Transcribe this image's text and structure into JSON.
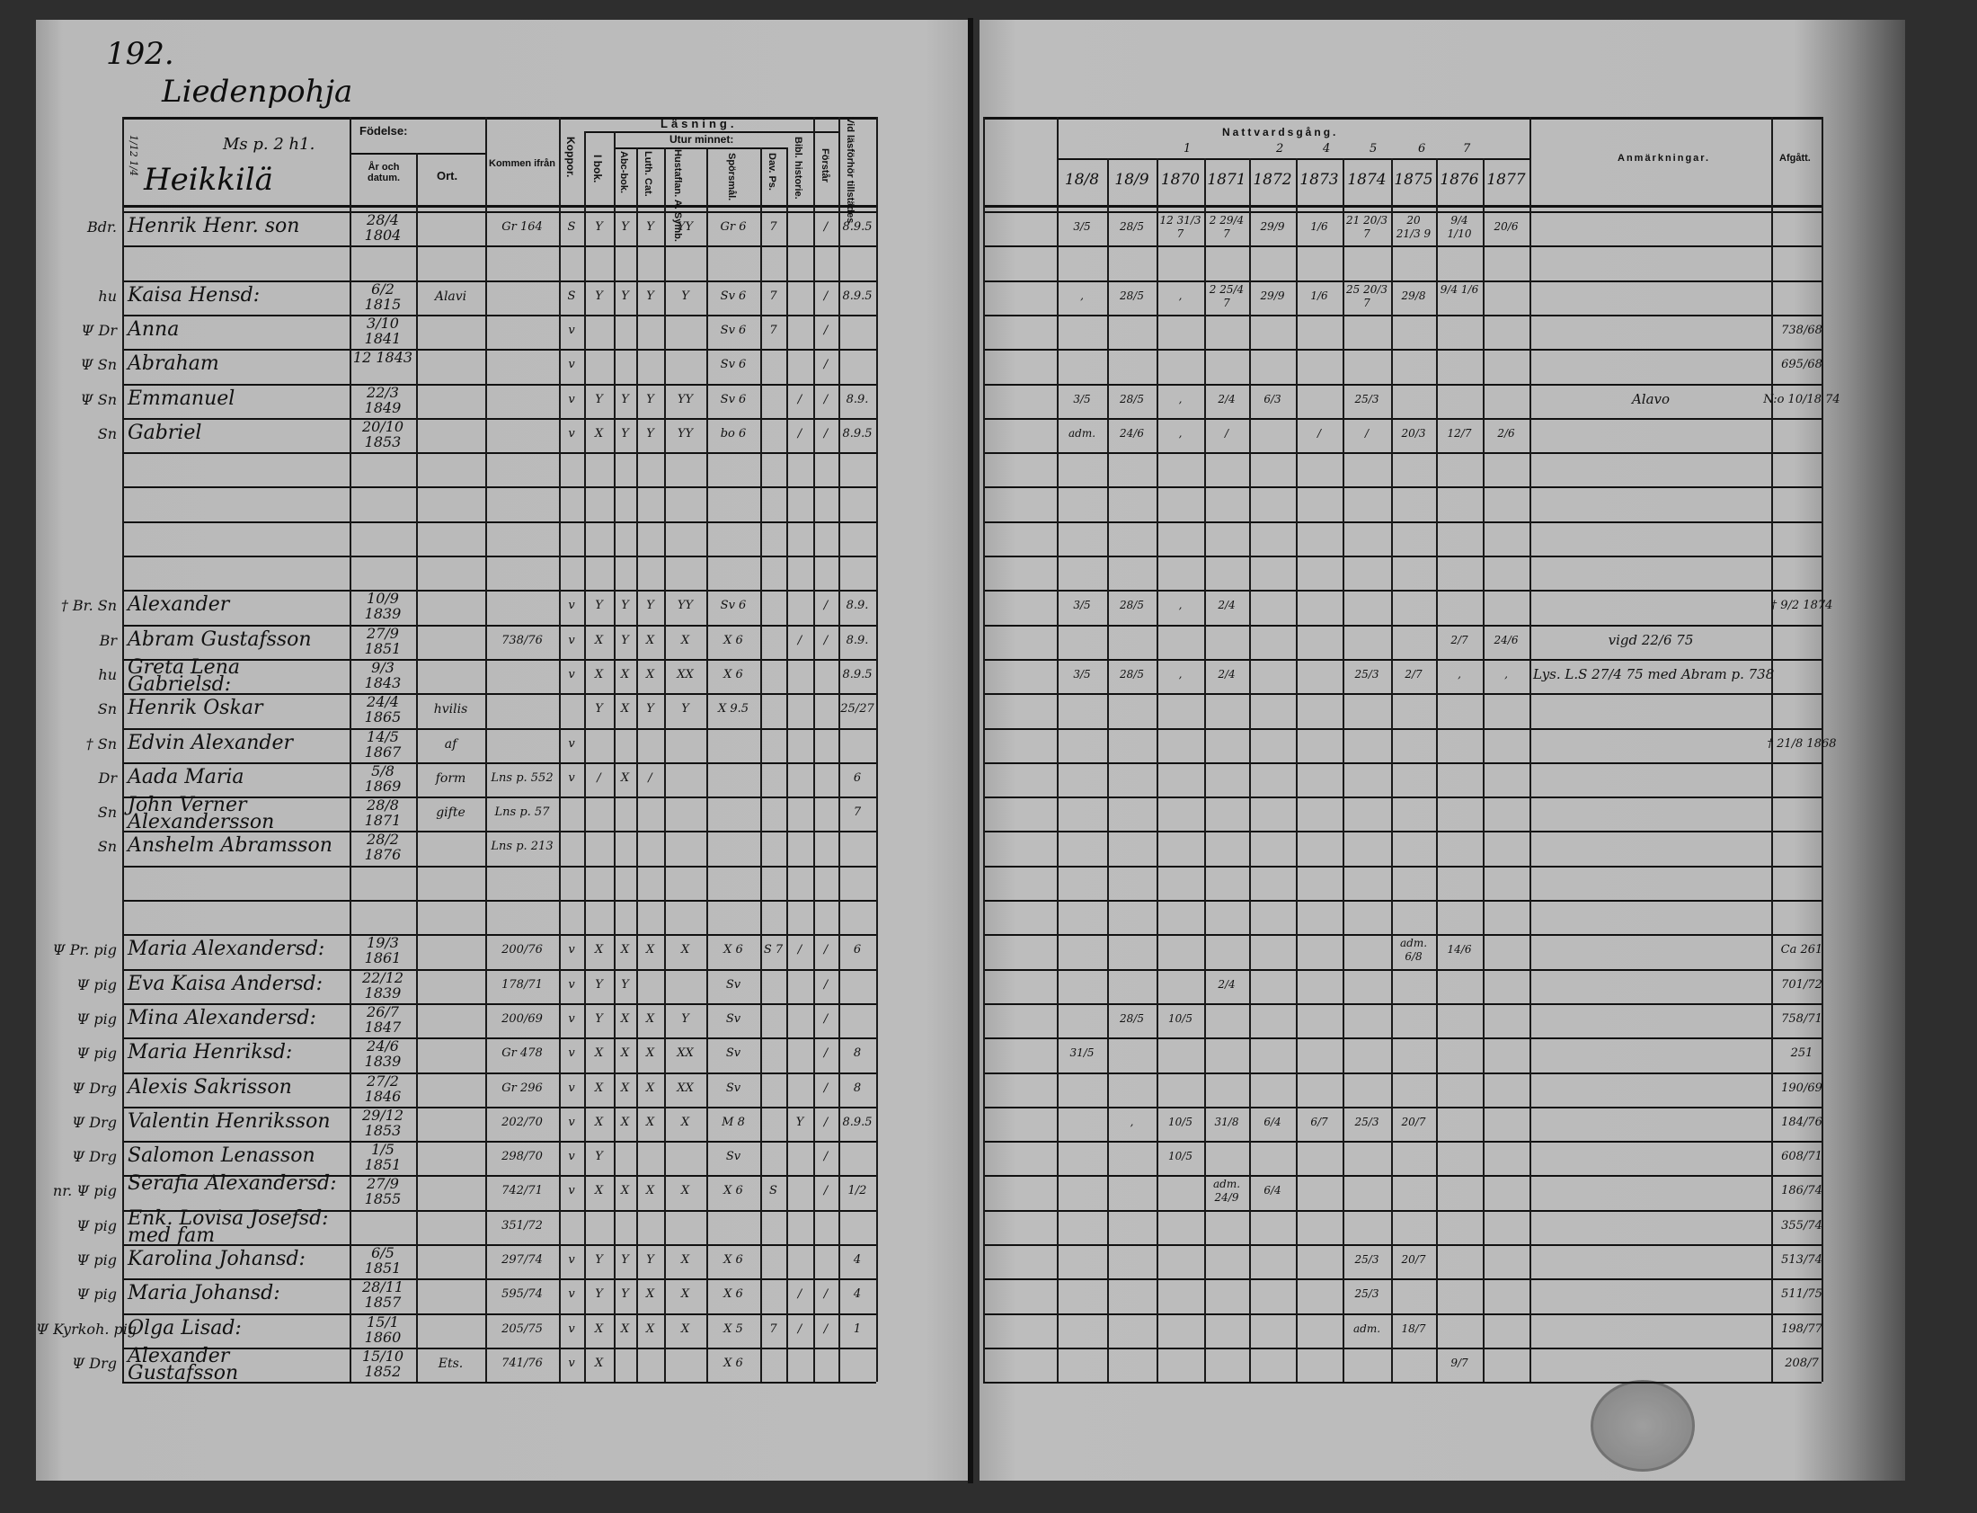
{
  "page_number": "192.",
  "village": "Liedenpohja",
  "farm": {
    "name": "Heikkilä",
    "reference": "Ms p. 2 h1.",
    "side_note": "1/12 1/4"
  },
  "header": {
    "birth": "Födelse:",
    "year_date": "År och datum.",
    "place": "Ort.",
    "came_from": "Kommen ifrån",
    "smallpox": "Koppor.",
    "reading": "Läsning.",
    "from_memory": "Utur minnet:",
    "in_book": "I bok.",
    "abc_book": "Abc-bok.",
    "luther_cat": "Luth. Cat.",
    "house_table": "Hustaflan. A. Symb.",
    "questions": "Spörsmål.",
    "psalms": "Dav. Ps.",
    "bible_history": "Bibl. historie.",
    "understands": "Förstår",
    "present_exam": "Vid läsförhör tillstädes",
    "communion": "Nattvardsgång.",
    "communion_numbers": [
      "1",
      "2",
      "4",
      "5",
      "6",
      "7"
    ],
    "years": [
      "18/8",
      "18/9",
      "1870",
      "1871",
      "1872",
      "1873",
      "1874",
      "1875",
      "1876",
      "1877"
    ],
    "remarks": "Anmärkningar.",
    "departed": "Afgått."
  },
  "rows": [
    {
      "mark": "Bdr.",
      "name": "Henrik Henr. son",
      "birth": "28/4 1804",
      "from": "Gr 164",
      "reading": [
        "S",
        "Y",
        "Y",
        "Y",
        "YY",
        "Gr 6",
        "7",
        "",
        "/",
        "8.9.5"
      ],
      "comm": [
        "3/5",
        "28/5",
        "12 31/3 7",
        "2 29/4 7",
        "29/9",
        "1/6",
        "21 20/3 7",
        "20 21/3 9",
        "9/4 1/10",
        "20/6"
      ]
    },
    {},
    {
      "mark": "hu",
      "name": "Kaisa Hensd:",
      "birth": "6/2 1815",
      "place": "Alavi",
      "reading": [
        "S",
        "Y",
        "Y",
        "Y",
        "Y",
        "Sv 6",
        "7",
        "",
        "/",
        "8.9.5"
      ],
      "comm": [
        ",",
        "28/5",
        ",",
        "2 25/4 7",
        "29/9",
        "1/6",
        "25 20/3 7",
        "29/8",
        "9/4 1/6",
        ""
      ]
    },
    {
      "mark": "Ψ Dr",
      "name": "Anna",
      "birth": "3/10 1841",
      "reading": [
        "v",
        "",
        "",
        "",
        "",
        "Sv 6",
        "7",
        "",
        "/",
        ""
      ],
      "afgatt": "738/68"
    },
    {
      "mark": "Ψ Sn",
      "name": "Abraham",
      "birth": "12 1843",
      "reading": [
        "v",
        "",
        "",
        "",
        "",
        "Sv 6",
        "",
        "",
        "/",
        ""
      ],
      "afgatt": "695/68"
    },
    {
      "mark": "Ψ Sn",
      "name": "Emmanuel",
      "birth": "22/3 1849",
      "reading": [
        "v",
        "Y",
        "Y",
        "Y",
        "YY",
        "Sv 6",
        "",
        "/",
        "/",
        "8.9."
      ],
      "comm": [
        "3/5",
        "28/5",
        ",",
        "2/4",
        "6/3",
        "",
        "25/3",
        "",
        "",
        ""
      ],
      "remark": "Alavo",
      "afgatt": "N:o 10/18 74"
    },
    {
      "mark": "Sn",
      "name": "Gabriel",
      "birth": "20/10 1853",
      "reading": [
        "v",
        "X",
        "Y",
        "Y",
        "YY",
        "bo 6",
        "",
        "/",
        "/",
        "8.9.5"
      ],
      "comm": [
        "adm.",
        "24/6",
        ",",
        "/",
        "",
        "/",
        "/",
        "20/3",
        "12/7",
        "2/6"
      ]
    },
    {},
    {},
    {},
    {},
    {
      "mark": "† Br. Sn",
      "name": "Alexander",
      "birth": "10/9 1839",
      "reading": [
        "v",
        "Y",
        "Y",
        "Y",
        "YY",
        "Sv 6",
        "",
        "",
        "/",
        "8.9."
      ],
      "comm": [
        "3/5",
        "28/5",
        ",",
        "2/4",
        "",
        "",
        "",
        "",
        "",
        ""
      ],
      "afgatt": "† 9/2 1874"
    },
    {
      "mark": "Br",
      "name": "Abram Gustafsson",
      "birth": "27/9 1851",
      "from": "738/76",
      "reading": [
        "v",
        "X",
        "Y",
        "X",
        "X",
        "X 6",
        "",
        "/",
        "/",
        "8.9."
      ],
      "comm": [
        "",
        "",
        "",
        "",
        "",
        "",
        "",
        "",
        "2/7",
        "24/6"
      ],
      "remark": "vigd 22/6 75"
    },
    {
      "mark": "hu",
      "name": "Greta Lena Gabrielsd:",
      "birth": "9/3 1843",
      "reading": [
        "v",
        "X",
        "X",
        "X",
        "XX",
        "X 6",
        "",
        "",
        "",
        "8.9.5"
      ],
      "comm": [
        "3/5",
        "28/5",
        ",",
        "2/4",
        "",
        "",
        "25/3",
        "2/7",
        ",",
        ","
      ],
      "remark": "Lys. L.S 27/4 75 med Abram p. 738"
    },
    {
      "mark": "Sn",
      "name": "Henrik Oskar",
      "birth": "24/4 1865",
      "place": "hvilis",
      "reading": [
        "",
        "Y",
        "X",
        "Y",
        "Y",
        "X 9.5",
        "",
        "",
        "",
        "25/27"
      ]
    },
    {
      "mark": "† Sn",
      "name": "Edvin Alexander",
      "birth": "14/5 1867",
      "place": "af",
      "reading": [
        "v",
        "",
        "",
        "",
        "",
        "",
        "",
        "",
        "",
        ""
      ],
      "afgatt": "† 21/8 1868"
    },
    {
      "mark": "Dr",
      "name": "Aada Maria",
      "birth": "5/8 1869",
      "place": "form",
      "from": "Lns p. 552",
      "reading": [
        "v",
        "/",
        "X",
        "/",
        "",
        "",
        "",
        "",
        "",
        "6"
      ]
    },
    {
      "mark": "Sn",
      "name": "John Verner Alexandersson",
      "birth": "28/8 1871",
      "place": "gifte",
      "from": "Lns p. 57",
      "reading": [
        "",
        "",
        "",
        "",
        "",
        "",
        "",
        "",
        "",
        "7"
      ]
    },
    {
      "mark": "Sn",
      "name": "Anshelm Abramsson",
      "birth": "28/2 1876",
      "from": "Lns p. 213"
    },
    {},
    {},
    {
      "mark": "Ψ Pr. pig",
      "name": "Maria Alexandersd:",
      "birth": "19/3 1861",
      "from": "200/76",
      "reading": [
        "v",
        "X",
        "X",
        "X",
        "X",
        "X 6",
        "S 7",
        "/",
        "/",
        "6"
      ],
      "comm": [
        "",
        "",
        "",
        "",
        "",
        "",
        "",
        "adm. 6/8",
        "14/6",
        ""
      ],
      "afgatt": "Ca 261"
    },
    {
      "mark": "Ψ pig",
      "name": "Eva Kaisa Andersd:",
      "birth": "22/12 1839",
      "from": "178/71",
      "reading": [
        "v",
        "Y",
        "Y",
        "",
        "",
        "Sv",
        "",
        "",
        "/",
        ""
      ],
      "comm": [
        "",
        "",
        "",
        "2/4",
        "",
        "",
        "",
        "",
        "",
        ""
      ],
      "afgatt": "701/72"
    },
    {
      "mark": "Ψ pig",
      "name": "Mina Alexandersd:",
      "birth": "26/7 1847",
      "from": "200/69",
      "reading": [
        "v",
        "Y",
        "X",
        "X",
        "Y",
        "Sv",
        "",
        "",
        "/",
        ""
      ],
      "comm": [
        "",
        "28/5",
        "10/5",
        "",
        "",
        "",
        "",
        "",
        "",
        ""
      ],
      "afgatt": "758/71"
    },
    {
      "mark": "Ψ pig",
      "name": "Maria Henriksd:",
      "birth": "24/6 1839",
      "from": "Gr 478",
      "reading": [
        "v",
        "X",
        "X",
        "X",
        "XX",
        "Sv",
        "",
        "",
        "/",
        "8"
      ],
      "comm": [
        "31/5",
        "",
        "",
        "",
        "",
        "",
        "",
        "",
        "",
        ""
      ],
      "afgatt": "251"
    },
    {
      "mark": "Ψ Drg",
      "name": "Alexis Sakrisson",
      "birth": "27/2 1846",
      "from": "Gr 296",
      "reading": [
        "v",
        "X",
        "X",
        "X",
        "XX",
        "Sv",
        "",
        "",
        "/",
        "8"
      ],
      "afgatt": "190/69"
    },
    {
      "mark": "Ψ Drg",
      "name": "Valentin Henriksson",
      "birth": "29/12 1853",
      "from": "202/70",
      "reading": [
        "v",
        "X",
        "X",
        "X",
        "X",
        "M 8",
        "",
        "Y",
        "/",
        "8.9.5"
      ],
      "comm": [
        "",
        ",",
        "10/5",
        "31/8",
        "6/4",
        "6/7",
        "25/3",
        "20/7",
        "",
        ""
      ],
      "afgatt": "184/76"
    },
    {
      "mark": "Ψ Drg",
      "name": "Salomon Lenasson",
      "birth": "1/5 1851",
      "from": "298/70",
      "reading": [
        "v",
        "Y",
        "",
        "",
        "",
        "Sv",
        "",
        "",
        "/",
        ""
      ],
      "comm": [
        "",
        "",
        "10/5",
        "",
        "",
        "",
        "",
        "",
        "",
        ""
      ],
      "afgatt": "608/71"
    },
    {
      "mark": "nr. Ψ pig",
      "name": "Serafia Alexandersd:",
      "birth": "27/9 1855",
      "from": "742/71",
      "reading": [
        "v",
        "X",
        "X",
        "X",
        "X",
        "X 6",
        "S",
        "",
        "/",
        "1/2"
      ],
      "comm": [
        "",
        "",
        "",
        "adm. 24/9",
        "6/4",
        "",
        "",
        "",
        "",
        ""
      ],
      "afgatt": "186/74"
    },
    {
      "mark": "Ψ pig",
      "name": "Enk. Lovisa Josefsd: med fam",
      "from": "351/72",
      "afgatt": "355/74"
    },
    {
      "mark": "Ψ pig",
      "name": "Karolina Johansd:",
      "birth": "6/5 1851",
      "from": "297/74",
      "reading": [
        "v",
        "Y",
        "Y",
        "Y",
        "X",
        "X 6",
        "",
        "",
        "",
        "4"
      ],
      "comm": [
        "",
        "",
        "",
        "",
        "",
        "",
        "25/3",
        "20/7",
        "",
        ""
      ],
      "afgatt": "513/74"
    },
    {
      "mark": "Ψ pig",
      "name": "Maria Johansd:",
      "birth": "28/11 1857",
      "from": "595/74",
      "reading": [
        "v",
        "Y",
        "Y",
        "X",
        "X",
        "X 6",
        "",
        "/",
        "/",
        "4"
      ],
      "comm": [
        "",
        "",
        "",
        "",
        "",
        "",
        "25/3",
        "",
        "",
        ""
      ],
      "afgatt": "511/75"
    },
    {
      "mark": "Ψ Kyrkoh. pig",
      "name": "Olga Lisad:",
      "birth": "15/1 1860",
      "from": "205/75",
      "reading": [
        "v",
        "X",
        "X",
        "X",
        "X",
        "X 5",
        "7",
        "/",
        "/",
        "1"
      ],
      "comm": [
        "",
        "",
        "",
        "",
        "",
        "",
        "adm.",
        "18/7",
        "",
        ""
      ],
      "afgatt": "198/77"
    },
    {
      "mark": "Ψ Drg",
      "name": "Alexander Gustafsson",
      "birth": "15/10 1852",
      "place": "Ets.",
      "from": "741/76",
      "reading": [
        "v",
        "X",
        "",
        "",
        "",
        "X 6",
        "",
        "",
        "",
        ""
      ],
      "comm": [
        "",
        "",
        "",
        "",
        "",
        "",
        "",
        "",
        "9/7",
        ""
      ],
      "afgatt": "208/7"
    }
  ]
}
